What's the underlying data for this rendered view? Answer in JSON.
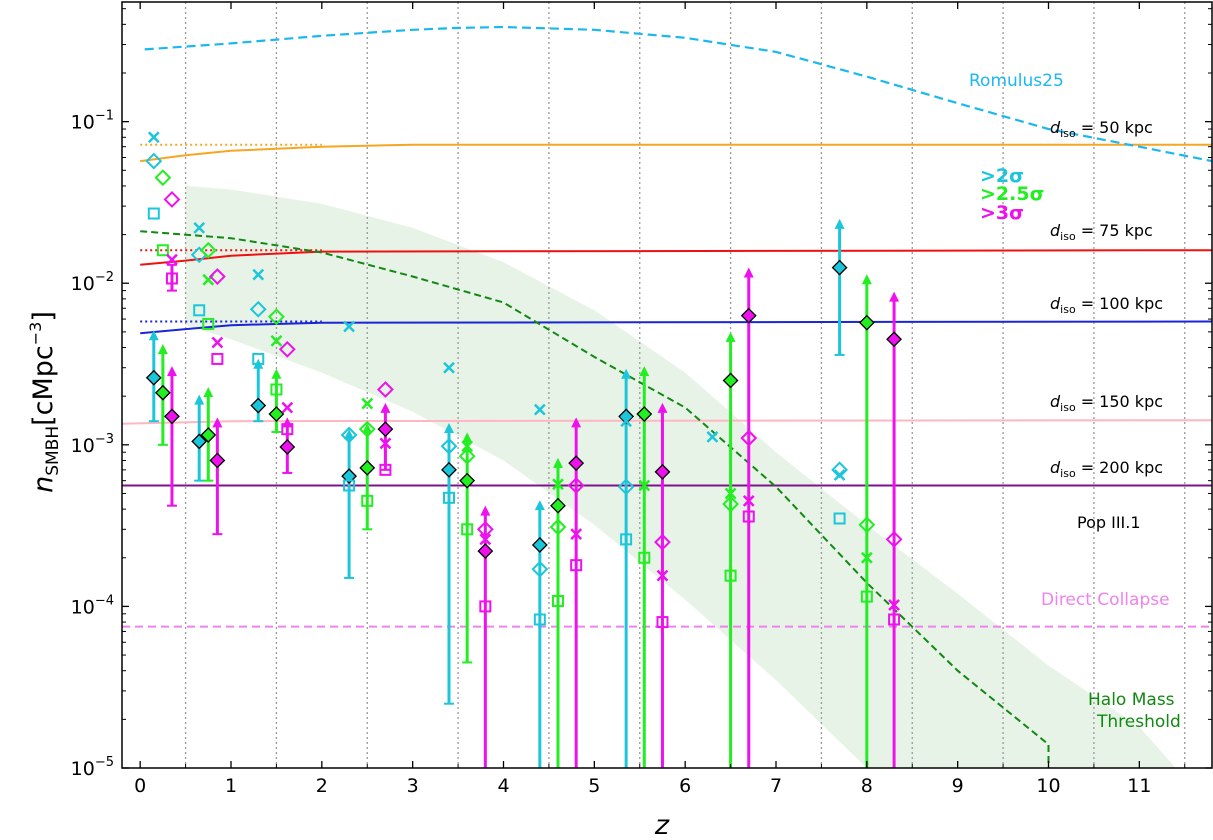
{
  "chart_data": {
    "type": "scatter",
    "xlabel": "z",
    "ylabel": "n_SMBH[cMpc^-3]",
    "xlim": [
      -0.2,
      11.8
    ],
    "ylim": [
      1e-05,
      0.55
    ],
    "yscale": "log",
    "x_ticks": [
      "0",
      "1",
      "2",
      "3",
      "4",
      "5",
      "6",
      "7",
      "8",
      "9",
      "10",
      "11"
    ],
    "y_ticks": [
      "10^-5",
      "10^-4",
      "10^-3",
      "10^-2",
      "10^-1"
    ],
    "grid": "vertical dotted at 0.5 bin edges",
    "sigma_legend": [
      {
        "label": ">2σ",
        "color": "#1cc6da"
      },
      {
        "label": ">2.5σ",
        "color": "#22ee22"
      },
      {
        "label": ">3σ",
        "color": "#ee11ee"
      }
    ],
    "annotations": {
      "romulus": "Romulus25",
      "popiii": "Pop III.1",
      "direct_collapse": "Direct Collapse",
      "halo_line1": "Halo Mass",
      "halo_line2": "Threshold",
      "d50": "= 50 kpc",
      "d75": "= 75 kpc",
      "d100": "= 100 kpc",
      "d150": "= 150 kpc",
      "d200": "= 200 kpc",
      "d_sym": "d",
      "d_sub": "iso"
    },
    "colors": {
      "romulus": "#1ab8ef",
      "d50": "#f5a623",
      "d75": "#ee1111",
      "d100": "#1a25d5",
      "d150": "#ffb6c1",
      "d200": "#7d128a",
      "direct_collapse": "#ee82ee",
      "halo": "#118811",
      "band": "#e8f3e8",
      "cyan": "#1cc6da",
      "green": "#22ee22",
      "magenta": "#ee11ee"
    },
    "lines": {
      "romulus": [
        [
          0.05,
          0.28
        ],
        [
          1,
          0.305
        ],
        [
          2,
          0.34
        ],
        [
          3,
          0.37
        ],
        [
          3.5,
          0.38
        ],
        [
          4,
          0.385
        ],
        [
          5,
          0.37
        ],
        [
          6,
          0.33
        ],
        [
          7,
          0.27
        ],
        [
          8,
          0.19
        ],
        [
          9,
          0.13
        ],
        [
          10,
          0.09
        ],
        [
          11,
          0.07
        ],
        [
          11.8,
          0.057
        ]
      ],
      "d50_solid": [
        [
          0,
          0.057
        ],
        [
          0.5,
          0.062
        ],
        [
          1,
          0.066
        ],
        [
          2,
          0.07
        ],
        [
          3,
          0.072
        ],
        [
          11.8,
          0.072
        ]
      ],
      "d50_dotted": [
        [
          0,
          0.072
        ],
        [
          2,
          0.072
        ]
      ],
      "d75_solid": [
        [
          0,
          0.013
        ],
        [
          0.5,
          0.0138
        ],
        [
          1,
          0.0148
        ],
        [
          2,
          0.0157
        ],
        [
          11.8,
          0.016
        ]
      ],
      "d75_dotted": [
        [
          0,
          0.016
        ],
        [
          2,
          0.016
        ]
      ],
      "d100_solid": [
        [
          0,
          0.0049
        ],
        [
          0.5,
          0.0052
        ],
        [
          1,
          0.0055
        ],
        [
          2,
          0.0057
        ],
        [
          11.8,
          0.0058
        ]
      ],
      "d100_dotted": [
        [
          0,
          0.0058
        ],
        [
          2,
          0.0058
        ]
      ],
      "d150": [
        [
          -0.2,
          0.00135
        ],
        [
          1,
          0.0014
        ],
        [
          11.8,
          0.00142
        ]
      ],
      "d200": [
        [
          -0.2,
          0.00056
        ],
        [
          11.8,
          0.00056
        ]
      ],
      "direct_collapse": [
        [
          -0.2,
          7.5e-05
        ],
        [
          11.8,
          7.5e-05
        ]
      ],
      "halo": [
        [
          0,
          0.021
        ],
        [
          1,
          0.019
        ],
        [
          2,
          0.0155
        ],
        [
          3,
          0.011
        ],
        [
          4,
          0.0076
        ],
        [
          5,
          0.0035
        ],
        [
          6,
          0.0017
        ],
        [
          7,
          0.00055
        ],
        [
          8,
          0.00014
        ],
        [
          9,
          4e-05
        ],
        [
          10,
          1.4e-05
        ],
        [
          10,
          9e-06
        ]
      ],
      "band_upper": [
        [
          0.5,
          0.04
        ],
        [
          1,
          0.038
        ],
        [
          2,
          0.031
        ],
        [
          3,
          0.022
        ],
        [
          4,
          0.0135
        ],
        [
          5,
          0.0068
        ],
        [
          6,
          0.0028
        ],
        [
          7,
          0.0009
        ],
        [
          8,
          0.00032
        ],
        [
          9,
          0.00012
        ],
        [
          10,
          4.3e-05
        ],
        [
          11,
          1.8e-05
        ],
        [
          11.4,
          1e-05
        ]
      ],
      "band_lower": [
        [
          0.5,
          0.0055
        ],
        [
          1,
          0.0045
        ],
        [
          2,
          0.0028
        ],
        [
          3,
          0.0016
        ],
        [
          4,
          0.0008
        ],
        [
          5,
          0.00032
        ],
        [
          6,
          0.00011
        ],
        [
          7,
          3.5e-05
        ],
        [
          8,
          1e-05
        ]
      ]
    },
    "points": [
      {
        "x": 0.15,
        "color": "cyan",
        "marker": "diamond_filled",
        "y": 0.0026,
        "err": [
          0.0014,
          0.0045
        ],
        "arrow": true
      },
      {
        "x": 0.25,
        "color": "green",
        "marker": "diamond_filled",
        "y": 0.0021,
        "err": [
          0.001,
          0.0037
        ],
        "arrow": true
      },
      {
        "x": 0.35,
        "color": "magenta",
        "marker": "diamond_filled",
        "y": 0.0015,
        "err": [
          0.00042,
          0.0027
        ],
        "arrow": true
      },
      {
        "x": 0.15,
        "color": "cyan",
        "marker": "cross",
        "y": 0.08
      },
      {
        "x": 0.15,
        "color": "cyan",
        "marker": "diamond_open",
        "y": 0.057
      },
      {
        "x": 0.15,
        "color": "cyan",
        "marker": "square_open",
        "y": 0.027
      },
      {
        "x": 0.25,
        "color": "green",
        "marker": "diamond_open",
        "y": 0.045
      },
      {
        "x": 0.25,
        "color": "green",
        "marker": "square_open",
        "y": 0.016
      },
      {
        "x": 0.35,
        "color": "magenta",
        "marker": "diamond_open",
        "y": 0.033
      },
      {
        "x": 0.35,
        "color": "magenta",
        "marker": "cross",
        "y": 0.014
      },
      {
        "x": 0.35,
        "color": "magenta",
        "marker": "square_open",
        "y": 0.0107,
        "err": [
          0.009,
          0.013
        ]
      },
      {
        "x": 0.65,
        "color": "cyan",
        "marker": "diamond_filled",
        "y": 0.00105,
        "err": [
          0.0006,
          0.0018
        ],
        "arrow": true
      },
      {
        "x": 0.75,
        "color": "green",
        "marker": "diamond_filled",
        "y": 0.00115,
        "err": [
          0.0006,
          0.002
        ],
        "arrow": true
      },
      {
        "x": 0.85,
        "color": "magenta",
        "marker": "diamond_filled",
        "y": 0.0008,
        "err": [
          0.00028,
          0.0013
        ],
        "arrow": true
      },
      {
        "x": 0.65,
        "color": "cyan",
        "marker": "cross",
        "y": 0.022
      },
      {
        "x": 0.65,
        "color": "cyan",
        "marker": "diamond_open",
        "y": 0.015
      },
      {
        "x": 0.65,
        "color": "cyan",
        "marker": "square_open",
        "y": 0.0068
      },
      {
        "x": 0.75,
        "color": "green",
        "marker": "diamond_open",
        "y": 0.016
      },
      {
        "x": 0.75,
        "color": "green",
        "marker": "cross",
        "y": 0.0105
      },
      {
        "x": 0.75,
        "color": "green",
        "marker": "square_open",
        "y": 0.0056
      },
      {
        "x": 0.85,
        "color": "magenta",
        "marker": "diamond_open",
        "y": 0.011
      },
      {
        "x": 0.85,
        "color": "magenta",
        "marker": "cross",
        "y": 0.0043
      },
      {
        "x": 0.85,
        "color": "magenta",
        "marker": "square_open",
        "y": 0.0034
      },
      {
        "x": 1.3,
        "color": "cyan",
        "marker": "diamond_filled",
        "y": 0.00175,
        "err": [
          0.0014,
          0.003
        ],
        "arrow": true
      },
      {
        "x": 1.5,
        "color": "green",
        "marker": "diamond_filled",
        "y": 0.00155,
        "err": [
          0.0012,
          0.0026
        ],
        "arrow": true
      },
      {
        "x": 1.62,
        "color": "magenta",
        "marker": "diamond_filled",
        "y": 0.00097,
        "err": [
          0.00067,
          0.0013
        ],
        "arrow": true
      },
      {
        "x": 1.3,
        "color": "cyan",
        "marker": "cross",
        "y": 0.0113
      },
      {
        "x": 1.3,
        "color": "cyan",
        "marker": "diamond_open",
        "y": 0.0069
      },
      {
        "x": 1.3,
        "color": "cyan",
        "marker": "square_open",
        "y": 0.0034
      },
      {
        "x": 1.5,
        "color": "green",
        "marker": "diamond_open",
        "y": 0.0062
      },
      {
        "x": 1.5,
        "color": "green",
        "marker": "cross",
        "y": 0.0044
      },
      {
        "x": 1.5,
        "color": "green",
        "marker": "square_open",
        "y": 0.0022
      },
      {
        "x": 1.62,
        "color": "magenta",
        "marker": "diamond_open",
        "y": 0.0039
      },
      {
        "x": 1.62,
        "color": "magenta",
        "marker": "cross",
        "y": 0.0017
      },
      {
        "x": 1.62,
        "color": "magenta",
        "marker": "square_open",
        "y": 0.00125
      },
      {
        "x": 2.3,
        "color": "cyan",
        "marker": "diamond_filled",
        "y": 0.00064,
        "err": [
          0.00015,
          0.0011
        ],
        "arrow": true
      },
      {
        "x": 2.5,
        "color": "green",
        "marker": "diamond_filled",
        "y": 0.00072,
        "err": [
          0.0003,
          0.0012
        ],
        "arrow": true
      },
      {
        "x": 2.7,
        "color": "magenta",
        "marker": "diamond_filled",
        "y": 0.00125,
        "err": [
          0.0007,
          0.0016
        ],
        "arrow": true
      },
      {
        "x": 2.3,
        "color": "cyan",
        "marker": "cross",
        "y": 0.0054
      },
      {
        "x": 2.3,
        "color": "cyan",
        "marker": "diamond_open",
        "y": 0.00115
      },
      {
        "x": 2.3,
        "color": "cyan",
        "marker": "square_open",
        "y": 0.00056
      },
      {
        "x": 2.5,
        "color": "green",
        "marker": "cross",
        "y": 0.0018
      },
      {
        "x": 2.5,
        "color": "green",
        "marker": "diamond_open",
        "y": 0.00125
      },
      {
        "x": 2.5,
        "color": "green",
        "marker": "square_open",
        "y": 0.00045
      },
      {
        "x": 2.7,
        "color": "magenta",
        "marker": "diamond_open",
        "y": 0.0022
      },
      {
        "x": 2.7,
        "color": "magenta",
        "marker": "cross",
        "y": 0.00102
      },
      {
        "x": 2.7,
        "color": "magenta",
        "marker": "square_open",
        "y": 0.0007
      },
      {
        "x": 3.4,
        "color": "cyan",
        "marker": "diamond_filled",
        "y": 0.0007,
        "err": [
          2.5e-05,
          0.0012
        ],
        "arrow": true
      },
      {
        "x": 3.6,
        "color": "green",
        "marker": "diamond_filled",
        "y": 0.0006,
        "err": [
          4.5e-05,
          0.00105
        ],
        "arrow": true
      },
      {
        "x": 3.8,
        "color": "magenta",
        "marker": "diamond_filled",
        "y": 0.00022,
        "err": [
          1e-06,
          0.00037
        ],
        "arrow": true
      },
      {
        "x": 3.4,
        "color": "cyan",
        "marker": "cross",
        "y": 0.003
      },
      {
        "x": 3.4,
        "color": "cyan",
        "marker": "diamond_open",
        "y": 0.00098
      },
      {
        "x": 3.4,
        "color": "cyan",
        "marker": "square_open",
        "y": 0.00047
      },
      {
        "x": 3.6,
        "color": "green",
        "marker": "cross",
        "y": 0.00098
      },
      {
        "x": 3.6,
        "color": "green",
        "marker": "diamond_open",
        "y": 0.00085
      },
      {
        "x": 3.6,
        "color": "green",
        "marker": "square_open",
        "y": 0.0003
      },
      {
        "x": 3.8,
        "color": "magenta",
        "marker": "diamond_open",
        "y": 0.0003
      },
      {
        "x": 3.8,
        "color": "magenta",
        "marker": "cross",
        "y": 0.00026
      },
      {
        "x": 3.8,
        "color": "magenta",
        "marker": "square_open",
        "y": 0.0001
      },
      {
        "x": 4.4,
        "color": "cyan",
        "marker": "diamond_filled",
        "y": 0.00024,
        "err": [
          1e-06,
          0.0004
        ],
        "arrow": true
      },
      {
        "x": 4.6,
        "color": "green",
        "marker": "diamond_filled",
        "y": 0.00042,
        "err": [
          1e-06,
          0.00073
        ],
        "arrow": true
      },
      {
        "x": 4.8,
        "color": "magenta",
        "marker": "diamond_filled",
        "y": 0.00077,
        "err": [
          1e-06,
          0.0013
        ],
        "arrow": true
      },
      {
        "x": 4.4,
        "color": "cyan",
        "marker": "cross",
        "y": 0.00165
      },
      {
        "x": 4.4,
        "color": "cyan",
        "marker": "diamond_open",
        "y": 0.00017
      },
      {
        "x": 4.4,
        "color": "cyan",
        "marker": "square_open",
        "y": 8.3e-05
      },
      {
        "x": 4.6,
        "color": "green",
        "marker": "cross",
        "y": 0.00057
      },
      {
        "x": 4.6,
        "color": "green",
        "marker": "diamond_open",
        "y": 0.00031
      },
      {
        "x": 4.6,
        "color": "green",
        "marker": "square_open",
        "y": 0.000108
      },
      {
        "x": 4.8,
        "color": "magenta",
        "marker": "diamond_open",
        "y": 0.00056
      },
      {
        "x": 4.8,
        "color": "magenta",
        "marker": "cross",
        "y": 0.00028
      },
      {
        "x": 4.8,
        "color": "magenta",
        "marker": "square_open",
        "y": 0.00018
      },
      {
        "x": 5.35,
        "color": "cyan",
        "marker": "diamond_filled",
        "y": 0.0015,
        "err": [
          1e-06,
          0.0026
        ],
        "arrow": true
      },
      {
        "x": 5.55,
        "color": "green",
        "marker": "diamond_filled",
        "y": 0.00155,
        "err": [
          1e-06,
          0.0027
        ],
        "arrow": true
      },
      {
        "x": 5.75,
        "color": "magenta",
        "marker": "diamond_filled",
        "y": 0.00068,
        "err": [
          1e-06,
          0.0016
        ],
        "arrow": true
      },
      {
        "x": 5.35,
        "color": "cyan",
        "marker": "cross",
        "y": 0.0014
      },
      {
        "x": 5.35,
        "color": "cyan",
        "marker": "diamond_open",
        "y": 0.00055
      },
      {
        "x": 5.35,
        "color": "cyan",
        "marker": "square_open",
        "y": 0.00026
      },
      {
        "x": 5.55,
        "color": "green",
        "marker": "cross",
        "y": 0.00056
      },
      {
        "x": 5.55,
        "color": "green",
        "marker": "square_open",
        "y": 0.0002
      },
      {
        "x": 5.75,
        "color": "magenta",
        "marker": "diamond_open",
        "y": 0.00025
      },
      {
        "x": 5.75,
        "color": "magenta",
        "marker": "cross",
        "y": 0.000155
      },
      {
        "x": 5.75,
        "color": "magenta",
        "marker": "square_open",
        "y": 8e-05
      },
      {
        "x": 6.3,
        "color": "cyan",
        "marker": "cross",
        "y": 0.00112
      },
      {
        "x": 6.5,
        "color": "green",
        "marker": "diamond_filled",
        "y": 0.0025,
        "err": [
          1e-06,
          0.0044
        ],
        "arrow": true
      },
      {
        "x": 6.7,
        "color": "magenta",
        "marker": "diamond_filled",
        "y": 0.0063,
        "err": [
          1e-06,
          0.011
        ],
        "arrow": true
      },
      {
        "x": 6.5,
        "color": "green",
        "marker": "cross",
        "y": 0.0005
      },
      {
        "x": 6.5,
        "color": "green",
        "marker": "diamond_open",
        "y": 0.00043
      },
      {
        "x": 6.5,
        "color": "green",
        "marker": "square_open",
        "y": 0.000155
      },
      {
        "x": 6.7,
        "color": "magenta",
        "marker": "diamond_open",
        "y": 0.0011
      },
      {
        "x": 6.7,
        "color": "magenta",
        "marker": "cross",
        "y": 0.00045
      },
      {
        "x": 6.7,
        "color": "magenta",
        "marker": "square_open",
        "y": 0.00036
      },
      {
        "x": 7.7,
        "color": "cyan",
        "marker": "diamond_filled",
        "y": 0.0125,
        "err": [
          0.0036,
          0.022
        ],
        "arrow": true
      },
      {
        "x": 8.0,
        "color": "green",
        "marker": "diamond_filled",
        "y": 0.0057,
        "err": [
          1e-06,
          0.01
        ],
        "arrow": true
      },
      {
        "x": 8.3,
        "color": "magenta",
        "marker": "diamond_filled",
        "y": 0.0045,
        "err": [
          1e-06,
          0.0078
        ],
        "arrow": true
      },
      {
        "x": 7.7,
        "color": "cyan",
        "marker": "diamond_open",
        "y": 0.0007
      },
      {
        "x": 7.7,
        "color": "cyan",
        "marker": "cross",
        "y": 0.00065
      },
      {
        "x": 7.7,
        "color": "cyan",
        "marker": "square_open",
        "y": 0.00035
      },
      {
        "x": 8.0,
        "color": "green",
        "marker": "diamond_open",
        "y": 0.00032
      },
      {
        "x": 8.0,
        "color": "green",
        "marker": "cross",
        "y": 0.0002
      },
      {
        "x": 8.0,
        "color": "green",
        "marker": "square_open",
        "y": 0.000115
      },
      {
        "x": 8.3,
        "color": "magenta",
        "marker": "diamond_open",
        "y": 0.00026
      },
      {
        "x": 8.3,
        "color": "magenta",
        "marker": "cross",
        "y": 0.000102
      },
      {
        "x": 8.3,
        "color": "magenta",
        "marker": "square_open",
        "y": 8.3e-05
      }
    ]
  }
}
